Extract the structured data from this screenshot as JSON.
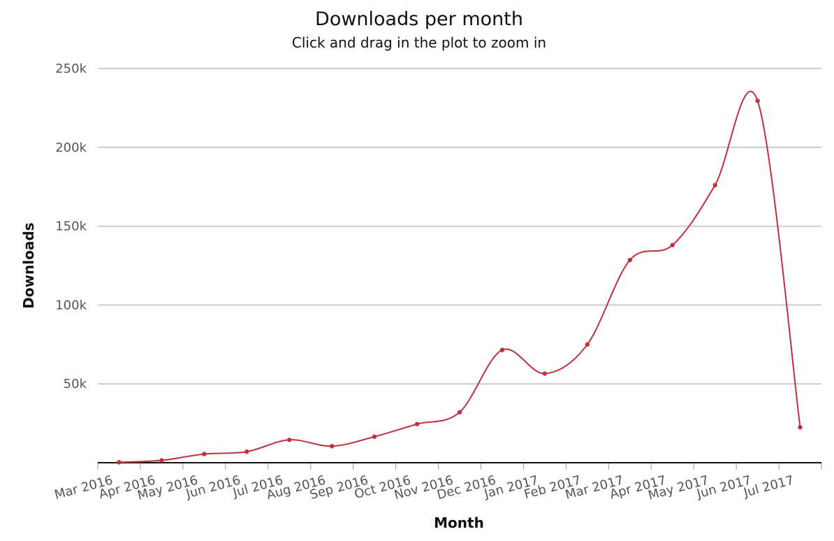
{
  "chart_data": {
    "type": "line",
    "title": "Downloads per month",
    "subtitle": "Click and drag in the plot to zoom in",
    "xlabel": "Month",
    "ylabel": "Downloads",
    "categories": [
      "Mar 2016",
      "Apr 2016",
      "May 2016",
      "Jun 2016",
      "Jul 2016",
      "Aug 2016",
      "Sep 2016",
      "Oct 2016",
      "Nov 2016",
      "Dec 2016",
      "Jan 2017",
      "Feb 2017",
      "Mar 2017",
      "Apr 2017",
      "May 2017",
      "Jun 2017",
      "Jul 2017"
    ],
    "ylim": [
      0,
      250000
    ],
    "yticks": [
      50000,
      100000,
      150000,
      200000,
      250000
    ],
    "ytick_labels": [
      "50k",
      "100k",
      "150k",
      "200k",
      "250k"
    ],
    "grid": true,
    "series": [
      {
        "color": "#c0313d",
        "values": [
          300,
          1500,
          5500,
          7000,
          14500,
          10500,
          16500,
          24500,
          32000,
          71500,
          56500,
          75000,
          128500,
          138000,
          176000,
          229500,
          22500
        ]
      }
    ]
  }
}
